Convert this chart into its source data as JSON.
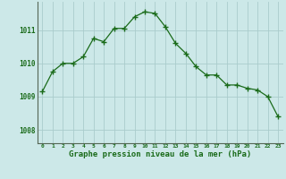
{
  "x": [
    0,
    1,
    2,
    3,
    4,
    5,
    6,
    7,
    8,
    9,
    10,
    11,
    12,
    13,
    14,
    15,
    16,
    17,
    18,
    19,
    20,
    21,
    22,
    23
  ],
  "y": [
    1009.15,
    1009.75,
    1010.0,
    1010.0,
    1010.2,
    1010.75,
    1010.65,
    1011.05,
    1011.05,
    1011.4,
    1011.55,
    1011.5,
    1011.1,
    1010.6,
    1010.3,
    1009.9,
    1009.65,
    1009.65,
    1009.35,
    1009.35,
    1009.25,
    1009.2,
    1009.0,
    1008.4
  ],
  "line_color": "#1a6b1a",
  "marker": "+",
  "marker_color": "#1a6b1a",
  "bg_color": "#cce8e8",
  "grid_color": "#aacccc",
  "xlabel": "Graphe pression niveau de la mer (hPa)",
  "xlabel_color": "#1a6b1a",
  "tick_label_color": "#1a6b1a",
  "yticks": [
    1008,
    1009,
    1010,
    1011
  ],
  "ylim": [
    1007.6,
    1011.85
  ],
  "xlim": [
    -0.5,
    23.5
  ],
  "xticks": [
    0,
    1,
    2,
    3,
    4,
    5,
    6,
    7,
    8,
    9,
    10,
    11,
    12,
    13,
    14,
    15,
    16,
    17,
    18,
    19,
    20,
    21,
    22,
    23
  ]
}
